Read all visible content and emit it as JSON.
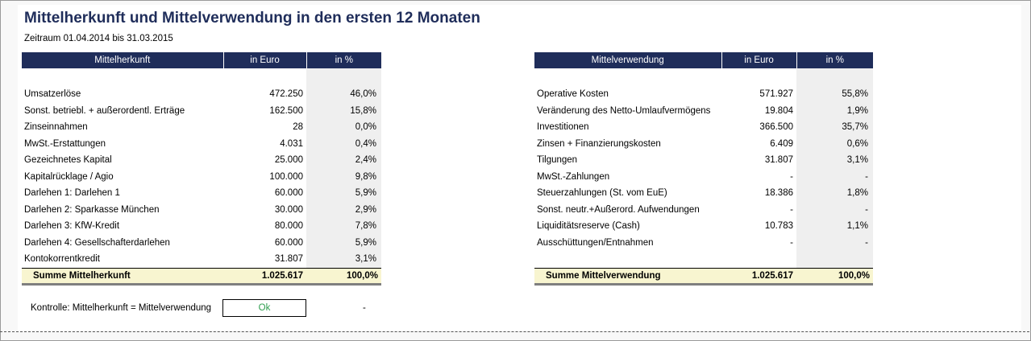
{
  "title": "Mittelherkunft und Mittelverwendung in den ersten 12 Monaten",
  "period": "Zeitraum 01.04.2014 bis 31.03.2015",
  "colors": {
    "header_bg": "#1f2d5a",
    "total_bg": "#f8f5d0",
    "ok_text": "#2e9e4e"
  },
  "herkunft": {
    "headers": [
      "Mittelherkunft",
      "in Euro",
      "in %"
    ],
    "rows": [
      {
        "label": "Umsatzerlöse",
        "euro": "472.250",
        "pct": "46,0%"
      },
      {
        "label": "Sonst. betriebl. + außerordentl. Erträge",
        "euro": "162.500",
        "pct": "15,8%"
      },
      {
        "label": "Zinseinnahmen",
        "euro": "28",
        "pct": "0,0%"
      },
      {
        "label": "MwSt.-Erstattungen",
        "euro": "4.031",
        "pct": "0,4%"
      },
      {
        "label": "Gezeichnetes Kapital",
        "euro": "25.000",
        "pct": "2,4%"
      },
      {
        "label": "Kapitalrücklage / Agio",
        "euro": "100.000",
        "pct": "9,8%"
      },
      {
        "label": "Darlehen 1: Darlehen 1",
        "euro": "60.000",
        "pct": "5,9%"
      },
      {
        "label": "Darlehen 2: Sparkasse München",
        "euro": "30.000",
        "pct": "2,9%"
      },
      {
        "label": "Darlehen 3: KfW-Kredit",
        "euro": "80.000",
        "pct": "7,8%"
      },
      {
        "label": "Darlehen 4: Gesellschafterdarlehen",
        "euro": "60.000",
        "pct": "5,9%"
      },
      {
        "label": "Kontokorrentkredit",
        "euro": "31.807",
        "pct": "3,1%"
      }
    ],
    "total": {
      "label": "Summe Mittelherkunft",
      "euro": "1.025.617",
      "pct": "100,0%"
    }
  },
  "verwendung": {
    "headers": [
      "Mittelverwendung",
      "in Euro",
      "in %"
    ],
    "rows": [
      {
        "label": "Operative Kosten",
        "euro": "571.927",
        "pct": "55,8%"
      },
      {
        "label": "Veränderung des Netto-Umlaufvermögens",
        "euro": "19.804",
        "pct": "1,9%"
      },
      {
        "label": "Investitionen",
        "euro": "366.500",
        "pct": "35,7%"
      },
      {
        "label": "Zinsen + Finanzierungskosten",
        "euro": "6.409",
        "pct": "0,6%"
      },
      {
        "label": "Tilgungen",
        "euro": "31.807",
        "pct": "3,1%"
      },
      {
        "label": "MwSt.-Zahlungen",
        "euro": "-",
        "pct": "-"
      },
      {
        "label": "Steuerzahlungen (St. vom EuE)",
        "euro": "18.386",
        "pct": "1,8%"
      },
      {
        "label": "Sonst. neutr.+Außerord. Aufwendungen",
        "euro": "-",
        "pct": "-"
      },
      {
        "label": "Liquiditätsreserve (Cash)",
        "euro": "10.783",
        "pct": "1,1%"
      },
      {
        "label": "Ausschüttungen/Entnahmen",
        "euro": "-",
        "pct": "-"
      }
    ],
    "total": {
      "label": "Summe Mittelverwendung",
      "euro": "1.025.617",
      "pct": "100,0%"
    }
  },
  "kontrolle": {
    "label": "Kontrolle: Mittelherkunft = Mittelverwendung",
    "status": "Ok",
    "difference": "-"
  }
}
